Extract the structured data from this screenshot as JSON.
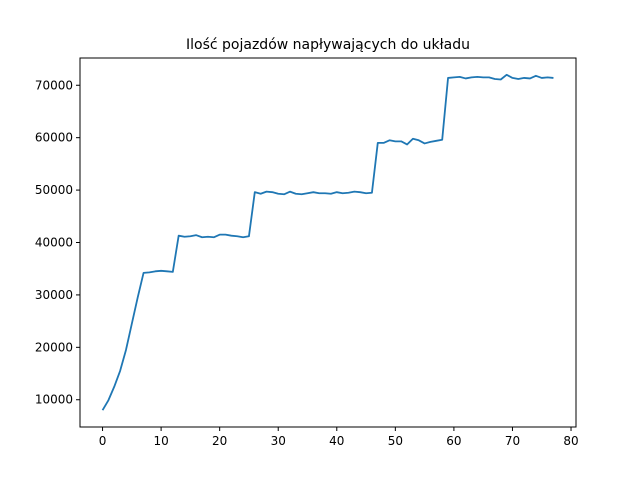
{
  "chart_data": {
    "type": "line",
    "title": "Ilość pojazdów napływających do układu",
    "xlabel": "",
    "ylabel": "",
    "xlim": [
      -3.85,
      80.85
    ],
    "ylim": [
      4800,
      75200
    ],
    "x_ticks": [
      0,
      10,
      20,
      30,
      40,
      50,
      60,
      70,
      80
    ],
    "y_ticks": [
      10000,
      20000,
      30000,
      40000,
      50000,
      60000,
      70000
    ],
    "grid": false,
    "legend": "none",
    "line_color": "#1f77b4",
    "series": [
      {
        "x": [
          0,
          1,
          2,
          3,
          4,
          5,
          6,
          7,
          8,
          9,
          10,
          11,
          12,
          13,
          14,
          15,
          16,
          17,
          18,
          19,
          20,
          21,
          22,
          23,
          24,
          25,
          26,
          27,
          28,
          29,
          30,
          31,
          32,
          33,
          34,
          35,
          36,
          37,
          38,
          39,
          40,
          41,
          42,
          43,
          44,
          45,
          46,
          47,
          48,
          49,
          50,
          51,
          52,
          53,
          54,
          55,
          56,
          57,
          58,
          59,
          60,
          61,
          62,
          63,
          64,
          65,
          66,
          67,
          68,
          69,
          70,
          71,
          72,
          73,
          74,
          75,
          76,
          77
        ],
        "values": [
          8000,
          9900,
          12500,
          15500,
          19500,
          24500,
          29500,
          34200,
          34300,
          34500,
          34600,
          34500,
          34400,
          41300,
          41100,
          41200,
          41400,
          41000,
          41100,
          41000,
          41500,
          41500,
          41300,
          41200,
          41000,
          41200,
          49600,
          49300,
          49700,
          49600,
          49300,
          49200,
          49700,
          49300,
          49200,
          49400,
          49600,
          49400,
          49400,
          49300,
          49600,
          49400,
          49500,
          49700,
          49600,
          49400,
          49500,
          59000,
          59000,
          59500,
          59300,
          59300,
          58700,
          59800,
          59500,
          58900,
          59200,
          59400,
          59600,
          71400,
          71500,
          71600,
          71300,
          71500,
          71600,
          71500,
          71500,
          71200,
          71100,
          72000,
          71400,
          71200,
          71400,
          71300,
          71800,
          71400,
          71500,
          71400
        ]
      }
    ]
  }
}
